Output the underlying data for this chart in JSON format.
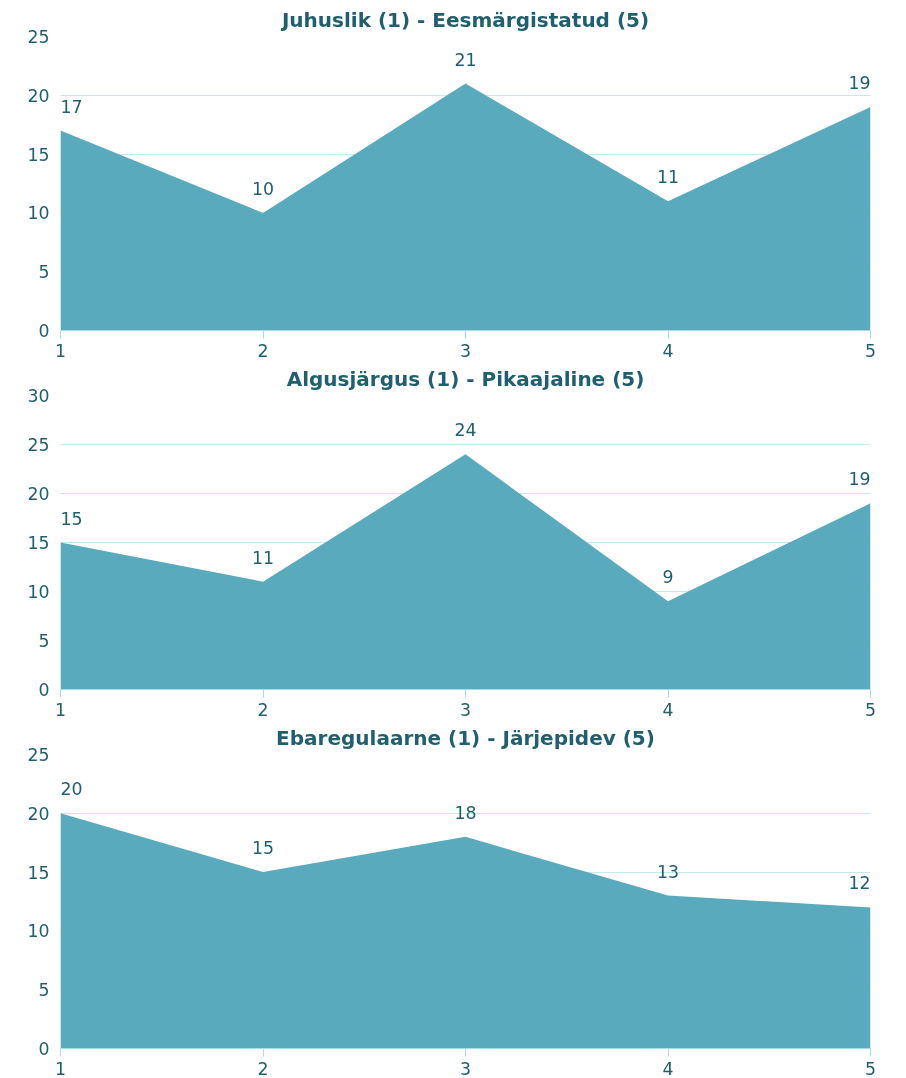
{
  "chart_data": [
    {
      "type": "area",
      "title": "Juhuslik (1) - Eesmärgistatud (5)",
      "x": [
        1,
        2,
        3,
        4,
        5
      ],
      "values": [
        17,
        10,
        21,
        11,
        19
      ],
      "color": "#5aaabe",
      "xlim": [
        1,
        5
      ],
      "xticks": [
        1,
        2,
        3,
        4,
        5
      ],
      "ylim": [
        0,
        25
      ],
      "yticks": [
        0,
        5,
        10,
        15,
        20,
        25
      ],
      "grid": "y",
      "data_labels": true
    },
    {
      "type": "area",
      "title": "Algusjärgus (1) - Pikaajaline (5)",
      "x": [
        1,
        2,
        3,
        4,
        5
      ],
      "values": [
        15,
        11,
        24,
        9,
        19
      ],
      "color": "#5aaabe",
      "xlim": [
        1,
        5
      ],
      "xticks": [
        1,
        2,
        3,
        4,
        5
      ],
      "ylim": [
        0,
        30
      ],
      "yticks": [
        0,
        5,
        10,
        15,
        20,
        25,
        30
      ],
      "grid": "y",
      "data_labels": true
    },
    {
      "type": "area",
      "title": "Ebaregulaarne (1) - Järjepidev (5)",
      "x": [
        1,
        2,
        3,
        4,
        5
      ],
      "values": [
        20,
        15,
        18,
        13,
        12
      ],
      "color": "#5aaabe",
      "xlim": [
        1,
        5
      ],
      "xticks": [
        1,
        2,
        3,
        4,
        5
      ],
      "ylim": [
        0,
        25
      ],
      "yticks": [
        0,
        5,
        10,
        15,
        20,
        25
      ],
      "grid": "y",
      "data_labels": true
    }
  ]
}
